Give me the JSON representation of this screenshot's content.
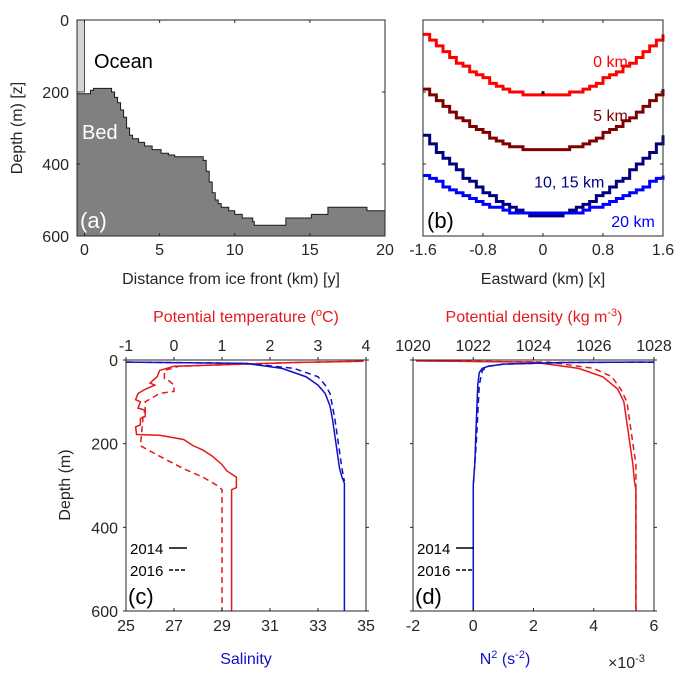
{
  "chart_data": [
    {
      "panel": "a",
      "type": "area",
      "panel_label": "(a)",
      "xlabel": "Distance from ice front (km) [y]",
      "ylabel": "Depth (m) [z]",
      "xlim": [
        -0.5,
        20
      ],
      "ylim": [
        0,
        600
      ],
      "y_reversed": true,
      "xticks": [
        0,
        5,
        10,
        15,
        20
      ],
      "yticks": [
        0,
        200,
        400,
        600
      ],
      "annotations": [
        {
          "text": "Ocean",
          "x": 1.7,
          "y": 110,
          "color": "#000000"
        },
        {
          "text": "Bed",
          "x": 0.3,
          "y": 305,
          "color": "#ffffff"
        }
      ],
      "ice_front": {
        "x_start": -0.5,
        "x_end": 0,
        "depth": 200,
        "color": "#d4d4d4"
      },
      "bed_color": "#808080",
      "bed_profile": {
        "x": [
          -0.5,
          0.2,
          0.4,
          0.6,
          1.6,
          1.8,
          2.0,
          2.2,
          2.4,
          2.6,
          2.8,
          3.0,
          3.2,
          3.6,
          4.0,
          4.5,
          5.1,
          5.6,
          6.0,
          7.4,
          7.9,
          8.1,
          8.3,
          8.5,
          8.7,
          8.9,
          9.1,
          9.6,
          10.0,
          10.5,
          11.2,
          11.3,
          13.2,
          13.4,
          14.8,
          15.1,
          16.2,
          18.8,
          20.0
        ],
        "depth": [
          205,
          205,
          195,
          190,
          190,
          200,
          215,
          230,
          250,
          270,
          300,
          320,
          330,
          340,
          350,
          360,
          370,
          375,
          380,
          380,
          390,
          420,
          450,
          480,
          500,
          510,
          520,
          530,
          540,
          550,
          560,
          570,
          570,
          550,
          550,
          540,
          520,
          530,
          530
        ]
      }
    },
    {
      "panel": "b",
      "type": "line",
      "panel_label": "(b)",
      "xlabel": "Eastward (km) [x]",
      "xlim": [
        -1.6,
        1.6
      ],
      "ylim": [
        0,
        600
      ],
      "y_reversed": true,
      "xticks": [
        -1.6,
        -0.8,
        0,
        0.8,
        1.6
      ],
      "xtick_labels": [
        "-1.6",
        "-0.8",
        "0",
        "0.8",
        "1.6"
      ],
      "marker": {
        "x": 0,
        "depth": 202,
        "color": "#000000"
      },
      "series": [
        {
          "name": "0 km",
          "color": "#ff0000",
          "edge_depth": 40,
          "center_depth": 210,
          "flat_halfwidth": 0.24,
          "label_x": 0.9,
          "label_depth": 130
        },
        {
          "name": "5 km",
          "color": "#800000",
          "edge_depth": 195,
          "center_depth": 362,
          "flat_halfwidth": 0.24,
          "label_x": 0.9,
          "label_depth": 280
        },
        {
          "name": "10, 15 km",
          "color": "#000080",
          "edge_depth": 322,
          "center_depth": 540,
          "flat_halfwidth": 0.24,
          "label_x": 0.35,
          "label_depth": 465
        },
        {
          "name": "20 km",
          "color": "#0000ff",
          "edge_depth": 428,
          "center_depth": 532,
          "flat_halfwidth": 0.45,
          "label_x": 1.2,
          "label_depth": 575
        }
      ]
    },
    {
      "panel": "c",
      "type": "line",
      "panel_label": "(c)",
      "ylabel": "Depth (m)",
      "ylim": [
        0,
        600
      ],
      "y_reversed": true,
      "yticks": [
        0,
        200,
        400,
        600
      ],
      "top_axis": {
        "label": "Potential temperature (°C)",
        "label_main": "Potential temperature (",
        "label_sup": "o",
        "label_end": "C)",
        "lim": [
          -1,
          4
        ],
        "ticks": [
          -1,
          0,
          1,
          2,
          3,
          4
        ],
        "color": "#e31a1c"
      },
      "bottom_axis": {
        "label": "Salinity",
        "lim": [
          25,
          35
        ],
        "ticks": [
          25,
          27,
          29,
          31,
          33,
          35
        ],
        "color": "#1010c8"
      },
      "legend": [
        {
          "year": "2014",
          "style": "—"
        },
        {
          "year": "2016",
          "style": "---"
        }
      ],
      "series": [
        {
          "name": "Temperature 2014",
          "axis": "top",
          "color": "#e31a1c",
          "dash": false,
          "x": [
            3.95,
            2.5,
            0.0,
            -0.3,
            -0.35,
            -0.5,
            -0.4,
            -0.6,
            -0.75,
            -0.8,
            -0.7,
            -0.75,
            -0.6,
            -0.6,
            -0.7,
            -0.7,
            -0.8,
            -0.78,
            -0.3,
            0.2,
            0.4,
            0.6,
            0.8,
            1.0,
            1.1,
            1.3,
            1.3,
            1.2,
            1.2
          ],
          "depth": [
            3,
            6,
            15,
            25,
            40,
            55,
            60,
            70,
            80,
            95,
            100,
            115,
            120,
            135,
            140,
            155,
            160,
            178,
            180,
            190,
            205,
            215,
            230,
            250,
            265,
            280,
            305,
            310,
            600
          ]
        },
        {
          "name": "Temperature 2016",
          "axis": "top",
          "color": "#e31a1c",
          "dash": true,
          "x": [
            3.9,
            2.5,
            0.1,
            -0.2,
            -0.2,
            -0.1,
            0.0,
            0.0,
            -0.3,
            -0.6,
            -0.6,
            -0.65,
            -0.65,
            -0.7,
            -0.3,
            0.2,
            0.6,
            0.9,
            1.0,
            1.0
          ],
          "depth": [
            3,
            6,
            15,
            25,
            45,
            50,
            60,
            75,
            80,
            100,
            120,
            130,
            145,
            205,
            230,
            260,
            280,
            300,
            310,
            600
          ]
        },
        {
          "name": "Salinity 2014",
          "axis": "bottom",
          "color": "#1010c8",
          "dash": false,
          "x": [
            25.0,
            30.0,
            31.5,
            32.5,
            33.0,
            33.3,
            33.5,
            33.6,
            33.7,
            33.8,
            33.9,
            34.0,
            34.1,
            34.1
          ],
          "depth": [
            5,
            8,
            20,
            40,
            60,
            80,
            110,
            140,
            180,
            220,
            260,
            280,
            295,
            600
          ]
        },
        {
          "name": "Salinity 2016",
          "axis": "bottom",
          "color": "#1010c8",
          "dash": true,
          "x": [
            25.0,
            30.0,
            32.0,
            33.0,
            33.3,
            33.5,
            33.6,
            33.7,
            33.8,
            33.9,
            34.0,
            34.1
          ],
          "depth": [
            5,
            8,
            20,
            40,
            60,
            80,
            110,
            140,
            180,
            220,
            260,
            290
          ]
        }
      ]
    },
    {
      "panel": "d",
      "type": "line",
      "panel_label": "(d)",
      "ylim": [
        0,
        600
      ],
      "y_reversed": true,
      "top_axis": {
        "label": "Potential density (kg m⁻³)",
        "label_main": "Potential density (kg m",
        "label_sup": "-3",
        "label_end": ")",
        "lim": [
          1020,
          1028
        ],
        "ticks": [
          1020,
          1022,
          1024,
          1026,
          1028
        ],
        "color": "#e31a1c"
      },
      "bottom_axis": {
        "label": "N² (s⁻²)",
        "label_main": "N",
        "label_sup": "2",
        "label_mid": " (s",
        "label_sup2": "-2",
        "label_end": ")",
        "lim": [
          -2,
          6
        ],
        "ticks": [
          -2,
          0,
          2,
          4,
          6
        ],
        "multiplier": "×10⁻³",
        "multiplier_base": "×10",
        "multiplier_exp": "-3",
        "color": "#1010c8"
      },
      "legend": [
        {
          "year": "2014",
          "style": "—"
        },
        {
          "year": "2016",
          "style": "---"
        }
      ],
      "series": [
        {
          "name": "Density 2014",
          "axis": "top",
          "color": "#e31a1c",
          "dash": false,
          "x": [
            1020.1,
            1024.0,
            1025.5,
            1026.3,
            1026.8,
            1027.0,
            1027.1,
            1027.2,
            1027.3,
            1027.35,
            1027.4,
            1027.4
          ],
          "depth": [
            2,
            5,
            20,
            40,
            70,
            100,
            150,
            200,
            250,
            290,
            310,
            600
          ]
        },
        {
          "name": "Density 2016",
          "axis": "top",
          "color": "#e31a1c",
          "dash": true,
          "x": [
            1020.1,
            1024.5,
            1026.0,
            1026.6,
            1026.9,
            1027.1,
            1027.2,
            1027.3,
            1027.4,
            1027.4
          ],
          "depth": [
            2,
            5,
            20,
            40,
            70,
            100,
            150,
            200,
            250,
            600
          ]
        },
        {
          "name": "N2 2014",
          "axis": "bottom",
          "color": "#1010c8",
          "dash": false,
          "x": [
            6.0,
            3.0,
            1.0,
            0.5,
            0.3,
            0.2,
            0.15,
            0.1,
            0.05,
            0.0,
            0.0
          ],
          "depth": [
            5,
            6,
            10,
            15,
            20,
            30,
            60,
            150,
            250,
            300,
            600
          ]
        },
        {
          "name": "N2 2016",
          "axis": "bottom",
          "color": "#1010c8",
          "dash": true,
          "x": [
            6.0,
            3.0,
            1.0,
            0.5,
            0.3,
            0.2,
            0.1,
            0.0
          ],
          "depth": [
            5,
            6,
            10,
            15,
            25,
            60,
            200,
            300
          ]
        }
      ]
    }
  ]
}
